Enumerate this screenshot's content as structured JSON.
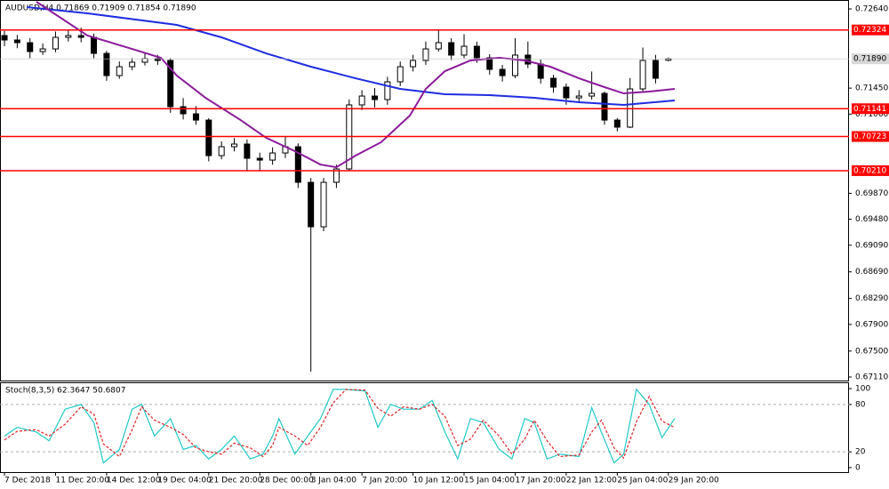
{
  "chart_data": [
    {
      "type": "candlestick",
      "title": "AUDUSD,H4  0.71869 0.71909 0.71854 0.71890",
      "x": [
        0,
        4,
        8,
        12,
        16,
        20,
        24,
        28,
        32,
        36,
        40,
        44,
        48,
        52,
        56,
        60,
        64,
        68,
        72,
        76,
        80,
        84,
        88,
        92,
        96,
        100,
        104,
        108,
        112,
        116,
        120,
        124,
        128,
        132,
        136,
        140,
        144,
        148,
        152,
        156,
        160,
        164,
        168,
        172,
        176,
        180,
        184,
        188,
        192,
        196,
        200,
        204,
        208
      ],
      "open": [
        0.7224,
        0.72173,
        0.72133,
        0.71999,
        0.72039,
        0.72213,
        0.7224,
        0.72213,
        0.71972,
        0.71638,
        0.71772,
        0.71839,
        0.71892,
        0.71866,
        0.71171,
        0.71064,
        0.7097,
        0.70436,
        0.7057,
        0.7061,
        0.70396,
        0.70369,
        0.70476,
        0.7057,
        0.70035,
        0.69367,
        0.70035,
        0.70236,
        0.71198,
        0.71331,
        0.71278,
        0.71545,
        0.71772,
        0.71866,
        0.72039,
        0.72133,
        0.71946,
        0.72079,
        0.71906,
        0.71732,
        0.71638,
        0.71946,
        0.71812,
        0.71598,
        0.71465,
        0.71304,
        0.71331,
        0.71371,
        0.7097,
        0.70864,
        0.71438,
        0.71866,
        0.71869
      ],
      "high": [
        0.7231,
        0.7225,
        0.722,
        0.7212,
        0.723,
        0.7233,
        0.7236,
        0.7227,
        0.7201,
        0.7185,
        0.719,
        0.7198,
        0.7195,
        0.719,
        0.713,
        0.7118,
        0.71,
        0.7065,
        0.707,
        0.7068,
        0.7048,
        0.7056,
        0.7072,
        0.7062,
        0.701,
        0.701,
        0.703,
        0.7128,
        0.7142,
        0.7145,
        0.7162,
        0.7185,
        0.7195,
        0.7215,
        0.7233,
        0.722,
        0.7226,
        0.7215,
        0.7196,
        0.718,
        0.722,
        0.7215,
        0.7188,
        0.7165,
        0.7152,
        0.7142,
        0.717,
        0.714,
        0.71,
        0.716,
        0.7206,
        0.7195,
        0.71909
      ],
      "low": [
        0.7208,
        0.7205,
        0.719,
        0.7195,
        0.7199,
        0.7215,
        0.7214,
        0.719,
        0.7156,
        0.7159,
        0.7172,
        0.7179,
        0.718,
        0.7108,
        0.7098,
        0.709,
        0.7035,
        0.7038,
        0.705,
        0.702,
        0.702,
        0.703,
        0.704,
        0.6995,
        0.6719,
        0.693,
        0.6995,
        0.702,
        0.7112,
        0.7116,
        0.712,
        0.7148,
        0.717,
        0.718,
        0.72,
        0.7187,
        0.719,
        0.7183,
        0.7165,
        0.7155,
        0.716,
        0.7175,
        0.7152,
        0.7138,
        0.712,
        0.7123,
        0.7128,
        0.709,
        0.708,
        0.7085,
        0.714,
        0.7152,
        0.71854
      ],
      "close": [
        0.72173,
        0.72133,
        0.71999,
        0.72039,
        0.72213,
        0.7224,
        0.72213,
        0.71972,
        0.71638,
        0.71772,
        0.71839,
        0.71892,
        0.71866,
        0.71171,
        0.71064,
        0.7097,
        0.70436,
        0.7057,
        0.7061,
        0.70396,
        0.70369,
        0.70476,
        0.7057,
        0.70035,
        0.69367,
        0.70035,
        0.70236,
        0.71198,
        0.71331,
        0.71278,
        0.71545,
        0.71772,
        0.71866,
        0.72039,
        0.72133,
        0.71946,
        0.72079,
        0.71906,
        0.71732,
        0.71638,
        0.71946,
        0.71812,
        0.71598,
        0.71465,
        0.71304,
        0.71331,
        0.71371,
        0.7097,
        0.70864,
        0.71438,
        0.71866,
        0.71598,
        0.7189
      ],
      "up_color": "#ffffff",
      "down_color": "#000000",
      "lines": [
        {
          "color": "#1f2de0",
          "x": [
            7,
            26,
            54,
            68,
            82,
            96,
            110,
            124,
            138,
            152,
            166,
            180,
            194,
            210
          ],
          "values": [
            0.72667,
            0.72574,
            0.724,
            0.72213,
            0.71972,
            0.71772,
            0.71598,
            0.71438,
            0.71358,
            0.71344,
            0.71304,
            0.71238,
            0.71198,
            0.71264
          ]
        },
        {
          "color": "#8b1a9b",
          "x": [
            10,
            26,
            40,
            49,
            54,
            63,
            74,
            82,
            91,
            99,
            104,
            110,
            118,
            127,
            132,
            138,
            146,
            155,
            163,
            171,
            180,
            188,
            194,
            202,
            210
          ],
          "values": [
            0.72747,
            0.7224,
            0.72039,
            0.71906,
            0.71638,
            0.71304,
            0.7097,
            0.70703,
            0.70503,
            0.70302,
            0.70262,
            0.70436,
            0.70637,
            0.71037,
            0.71438,
            0.71705,
            0.71866,
            0.71906,
            0.71866,
            0.71772,
            0.71598,
            0.71465,
            0.71371,
            0.71398,
            0.71438
          ]
        }
      ],
      "hlines": [
        {
          "value": 0.72324,
          "label": "0.72324"
        },
        {
          "value": 0.71141,
          "label": "0.71141"
        },
        {
          "value": 0.70723,
          "label": "0.70723"
        },
        {
          "value": 0.7021,
          "label": "0.70210"
        }
      ],
      "hline_color": "#ff0000",
      "last_price": {
        "value": 0.7189,
        "label": "0.71890"
      },
      "xlim": [
        -1.4,
        264.6
      ],
      "ylim": [
        0.67057,
        0.72774
      ],
      "yticks": [
        {
          "value": 0.7264,
          "label": "0.72640"
        },
        {
          "value": 0.7145,
          "label": "0.71450"
        },
        {
          "value": 0.7106,
          "label": "0.71060"
        },
        {
          "value": 0.6987,
          "label": "0.69870"
        },
        {
          "value": 0.6948,
          "label": "0.69480"
        },
        {
          "value": 0.6909,
          "label": "0.69090"
        },
        {
          "value": 0.6869,
          "label": "0.68690"
        },
        {
          "value": 0.6829,
          "label": "0.68290"
        },
        {
          "value": 0.679,
          "label": "0.67900"
        },
        {
          "value": 0.675,
          "label": "0.67500"
        },
        {
          "value": 0.6711,
          "label": "0.67110"
        }
      ]
    },
    {
      "type": "line",
      "title": "Stoch(8,3,5) 62.3647 50.6807",
      "x": [
        0,
        4,
        10,
        14,
        19,
        24,
        28,
        31,
        36,
        40,
        43,
        47,
        52,
        56,
        60,
        64,
        68,
        72,
        77,
        81,
        84,
        86,
        91,
        95,
        99,
        103,
        107,
        113,
        117,
        121,
        125,
        130,
        134,
        138,
        142,
        146,
        150,
        155,
        159,
        163,
        166,
        170,
        174,
        180,
        184,
        187,
        191,
        194,
        198,
        202,
        206,
        210
      ],
      "series": [
        {
          "color": "#20c8c8",
          "dash": false,
          "values": [
            40,
            51,
            45,
            34,
            74,
            80,
            57,
            6,
            23,
            74,
            80,
            40,
            62,
            23,
            28,
            11,
            23,
            40,
            11,
            17,
            40,
            62,
            17,
            40,
            62,
            99,
            99,
            97,
            51,
            80,
            74,
            74,
            85,
            45,
            11,
            62,
            57,
            23,
            11,
            62,
            57,
            11,
            17,
            14,
            76,
            45,
            6,
            17,
            99,
            80,
            38,
            62.3647
          ]
        },
        {
          "color": "#e02020",
          "dash": true,
          "values": [
            35,
            46,
            48,
            40,
            55,
            77,
            68,
            30,
            14,
            48,
            77,
            60,
            51,
            42,
            25,
            20,
            17,
            31,
            25,
            14,
            28,
            51,
            40,
            28,
            51,
            82,
            99,
            98,
            75,
            65,
            77,
            74,
            80,
            65,
            28,
            36,
            60,
            40,
            17,
            36,
            60,
            34,
            14,
            16,
            45,
            60,
            25,
            12,
            58,
            90,
            59,
            50.6807
          ]
        }
      ],
      "levels": [
        80,
        20
      ],
      "xlim": [
        -1.4,
        264.6
      ],
      "ylim": [
        -5.7,
        108
      ],
      "yticks": [
        100,
        80,
        20,
        0
      ],
      "xticks": [
        {
          "value": 0,
          "label": "7 Dec 2018"
        },
        {
          "value": 16,
          "label": "11 Dec 20:00"
        },
        {
          "value": 32,
          "label": "14 Dec 12:00"
        },
        {
          "value": 48,
          "label": "19 Dec 04:00"
        },
        {
          "value": 64,
          "label": "21 Dec 20:00"
        },
        {
          "value": 80,
          "label": "28 Dec 00:00"
        },
        {
          "value": 96,
          "label": "3 Jan 04:00"
        },
        {
          "value": 112,
          "label": "7 Jan 20:00"
        },
        {
          "value": 128,
          "label": "10 Jan 12:00"
        },
        {
          "value": 144,
          "label": "15 Jan 04:00"
        },
        {
          "value": 160,
          "label": "17 Jan 20:00"
        },
        {
          "value": 176,
          "label": "22 Jan 12:00"
        },
        {
          "value": 192,
          "label": "25 Jan 04:00"
        },
        {
          "value": 208,
          "label": "29 Jan 20:00"
        }
      ]
    }
  ]
}
